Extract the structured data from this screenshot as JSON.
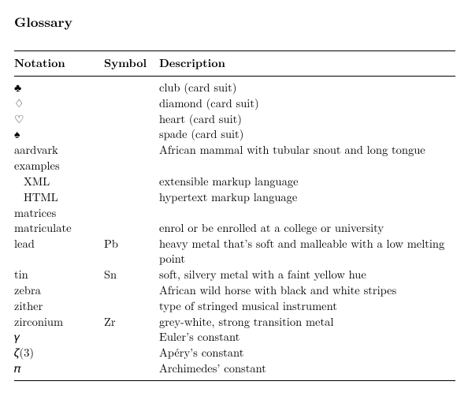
{
  "title": "Glossary",
  "headers": {
    "notation": "Notation",
    "symbol": "Symbol",
    "description": "Description"
  },
  "rows": {
    "r0": {
      "notation": "♣",
      "symbol": "",
      "description": "club (card suit)"
    },
    "r1": {
      "notation": "♢",
      "symbol": "",
      "description": "diamond (card suit)"
    },
    "r2": {
      "notation": "♡",
      "symbol": "",
      "description": "heart (card suit)"
    },
    "r3": {
      "notation": "♠",
      "symbol": "",
      "description": "spade (card suit)"
    },
    "r4": {
      "notation": "aardvark",
      "symbol": "",
      "description": "African mammal with tubular snout and long tongue"
    },
    "r5": {
      "notation": "examples",
      "symbol": "",
      "description": ""
    },
    "r6": {
      "notation": "XML",
      "symbol": "",
      "description": "extensible markup language"
    },
    "r7": {
      "notation": "HTML",
      "symbol": "",
      "description": "hypertext markup language"
    },
    "r8": {
      "notation": "matrices",
      "symbol": "",
      "description": ""
    },
    "r9": {
      "notation": "matriculate",
      "symbol": "",
      "description": "enrol or be enrolled at a college or university"
    },
    "r10": {
      "notation": "lead",
      "symbol": "Pb",
      "description": "heavy metal that’s soft and malleable with a low melting point"
    },
    "r11": {
      "notation": "tin",
      "symbol": "Sn",
      "description": "soft, silvery metal with a faint yellow hue"
    },
    "r12": {
      "notation": "zebra",
      "symbol": "",
      "description": "African wild horse with black and white stripes"
    },
    "r13": {
      "notation": "zither",
      "symbol": "",
      "description": "type of stringed musical instrument"
    },
    "r14": {
      "notation": "zirconium",
      "symbol": "Zr",
      "description": "grey-white, strong transition metal"
    },
    "r15": {
      "notation": "𝛾",
      "symbol": "",
      "description": "Euler’s constant"
    },
    "r16": {
      "notation": "𝜁(3)",
      "symbol": "",
      "description": "Apéry’s constant"
    },
    "r17": {
      "notation": "𝜋",
      "symbol": "",
      "description": "Archimedes’ constant"
    }
  }
}
